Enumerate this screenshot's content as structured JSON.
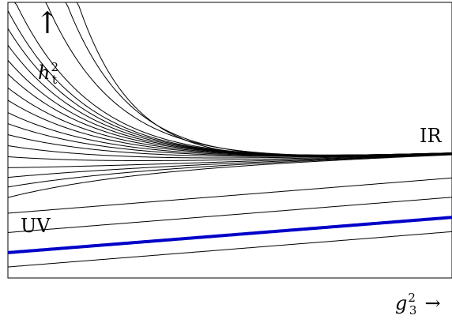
{
  "chart_data": {
    "type": "line",
    "title": "",
    "ylabel": {
      "base": "h",
      "sub": "t",
      "sup": "2"
    },
    "xlabel": {
      "base": "g",
      "sub": "3",
      "sup": "2",
      "arrow": "→"
    },
    "y_arrow": "↑",
    "annotations": {
      "uv": "UV",
      "ir": "IR"
    },
    "xlim": [
      0,
      1
    ],
    "ylim": [
      0,
      1
    ],
    "grid": false,
    "colors": {
      "curves": "#000000",
      "highlight": "#0000c8"
    },
    "fixed_line": {
      "y0": 0.092,
      "slope": 0.128
    },
    "straight_curves": [
      {
        "y0": 0.04,
        "slope": 0.128
      },
      {
        "y0": 0.092,
        "slope": 0.128,
        "highlight": true
      },
      {
        "y0": 0.165,
        "slope": 0.128
      },
      {
        "y0": 0.235,
        "slope": 0.128
      }
    ],
    "converging_curves": [
      {
        "y0": 0.292,
        "rate": 3.5
      },
      {
        "y0": 0.33,
        "rate": 3.5
      },
      {
        "y0": 0.365,
        "rate": 3.5
      },
      {
        "y0": 0.4,
        "rate": 3.5
      },
      {
        "y0": 0.44,
        "rate": 3.5
      },
      {
        "y0": 0.48,
        "rate": 3.5
      },
      {
        "y0": 0.52,
        "rate": 3.6
      },
      {
        "y0": 0.56,
        "rate": 3.8
      },
      {
        "y0": 0.6,
        "rate": 4.0
      },
      {
        "y0": 0.645,
        "rate": 4.2
      },
      {
        "y0": 0.69,
        "rate": 4.4
      },
      {
        "y0": 0.74,
        "rate": 4.6
      },
      {
        "y0": 0.79,
        "rate": 4.8
      },
      {
        "y0": 0.845,
        "rate": 5.0
      },
      {
        "y0": 0.905,
        "rate": 5.2
      },
      {
        "y0": 0.97,
        "rate": 5.4
      },
      {
        "y0": 1.0,
        "rate": 5.6
      },
      {
        "y0": 1.0,
        "rate": 6.2
      },
      {
        "y0": 1.0,
        "rate": 7.0
      },
      {
        "y0": 1.0,
        "rate": 8.0
      }
    ],
    "attractor": {
      "y0": 0.39,
      "slope": 0.06
    }
  }
}
